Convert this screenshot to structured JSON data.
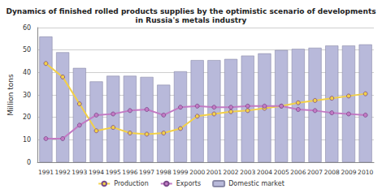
{
  "chart_data": {
    "type": "bar",
    "title": "Dynamics of finished rolled products supplies by the optimistic scenario of developments\nin Russia's metals industry",
    "y_label": "Million tons",
    "categories": [
      "1991",
      "1992",
      "1993",
      "1994",
      "1995",
      "1996",
      "1997",
      "1998",
      "1999",
      "2000",
      "2001",
      "2002",
      "2003",
      "2004",
      "2005",
      "2006",
      "2007",
      "2008",
      "2009",
      "2010"
    ],
    "series": [
      {
        "name": "Production",
        "type": "line",
        "color": "#f2d048",
        "marker": "circle",
        "values": [
          44,
          38,
          26,
          14,
          15.5,
          13,
          12.5,
          13,
          15,
          20.5,
          21.5,
          22.5,
          23,
          24,
          25,
          26.5,
          27.5,
          28.5,
          29.5,
          30.5
        ]
      },
      {
        "name": "Exports",
        "type": "line",
        "color": "#c27ac4",
        "marker": "circle",
        "values": [
          10.5,
          10.5,
          16.5,
          21,
          21.5,
          23,
          23.5,
          21,
          24.5,
          25,
          24.5,
          24.5,
          25,
          25,
          25,
          23.5,
          23,
          22,
          21.5,
          21
        ]
      },
      {
        "name": "Domestic market",
        "type": "bar",
        "color": "#b8b9da",
        "values": [
          56,
          49,
          42,
          36,
          38.5,
          38.5,
          38,
          34.5,
          40.5,
          45.5,
          45.5,
          46,
          47.5,
          48.5,
          50,
          50.5,
          51,
          52,
          52,
          52.5
        ]
      }
    ],
    "ylim": [
      0,
      60
    ],
    "yticks": [
      0,
      10,
      20,
      30,
      40,
      50,
      60
    ],
    "grid": true,
    "legend": "bottom"
  }
}
